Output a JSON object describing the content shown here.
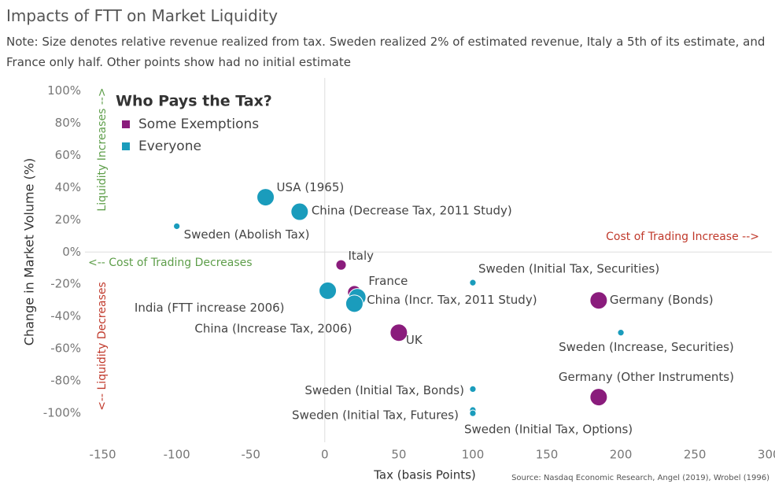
{
  "chart_data": {
    "type": "scatter",
    "title": "Impacts of FTT on Market Liquidity",
    "subtitle": "Note: Size denotes relative revenue realized from tax. Sweden realized 2% of estimated revenue, Italy a 5th of its estimate, and France only half. Other points show had no initial estimate",
    "x_label": "Tax (basis Points)",
    "y_label": "Change in Market Volume (%)",
    "source": "Source: Nasdaq Economic Research, Angel (2019), Wrobel (1996)",
    "legend_title": "Who Pays the Tax?",
    "legend_position": "upper left",
    "xlim": [
      -162,
      302
    ],
    "ylim": [
      -118,
      108
    ],
    "xticks": [
      -150,
      -100,
      -50,
      0,
      50,
      100,
      150,
      200,
      250,
      300
    ],
    "yticks": [
      {
        "value": 100,
        "label": "100%"
      },
      {
        "value": 80,
        "label": "80%"
      },
      {
        "value": 60,
        "label": "60%"
      },
      {
        "value": 40,
        "label": "40%"
      },
      {
        "value": 20,
        "label": "20%"
      },
      {
        "value": 0,
        "label": "0%"
      },
      {
        "value": -20,
        "label": "-20%"
      },
      {
        "value": -40,
        "label": "-40%"
      },
      {
        "value": -60,
        "label": "-60%"
      },
      {
        "value": -80,
        "label": "-80%"
      },
      {
        "value": -100,
        "label": "-100%"
      }
    ],
    "grid": false,
    "zero_lines": true,
    "series": [
      {
        "name": "Some Exemptions",
        "color": "#8a1c7c",
        "labels": [
          "Italy",
          "France",
          "UK",
          "Germany (Bonds)",
          "Germany (Other Instruments)"
        ],
        "x": [
          11,
          20,
          50,
          185,
          185
        ],
        "values": [
          -8,
          -25,
          -50,
          -30,
          -90
        ],
        "sizes": [
          20,
          50,
          100,
          100,
          100
        ]
      },
      {
        "name": "Everyone",
        "color": "#1a9cbc",
        "labels": [
          "USA (1965)",
          "China (Decrease Tax, 2011 Study)",
          "Sweden (Abolish Tax)",
          "China (Incr. Tax, 2011 Study)",
          "India (FTT increase 2006)",
          "China (Increase Tax, 2006)",
          "Sweden (Initial Tax, Securities)",
          "Sweden (Increase, Securities)",
          "Sweden (Initial Tax, Bonds)",
          "Sweden (Initial Tax, Futures)",
          "Sweden (Initial Tax, Options)"
        ],
        "x": [
          -40,
          -17,
          -100,
          22,
          2,
          20,
          100,
          200,
          100,
          100,
          100
        ],
        "values": [
          34,
          25,
          16,
          -28,
          -24,
          -32,
          -19,
          -50,
          -85,
          -98,
          -100
        ],
        "sizes": [
          100,
          100,
          2,
          100,
          100,
          100,
          2,
          2,
          2,
          2,
          2
        ]
      }
    ],
    "annotations": [
      {
        "text": "Cost of Trading Increase -->",
        "color": "#c0392b"
      },
      {
        "text": "<-- Cost of Trading Decreases",
        "color": "#5e9e4a"
      },
      {
        "text": "Liquidity Increases -->",
        "color": "#5e9e4a"
      },
      {
        "text": "<-- Liquidity Decreases",
        "color": "#c0392b"
      }
    ]
  }
}
